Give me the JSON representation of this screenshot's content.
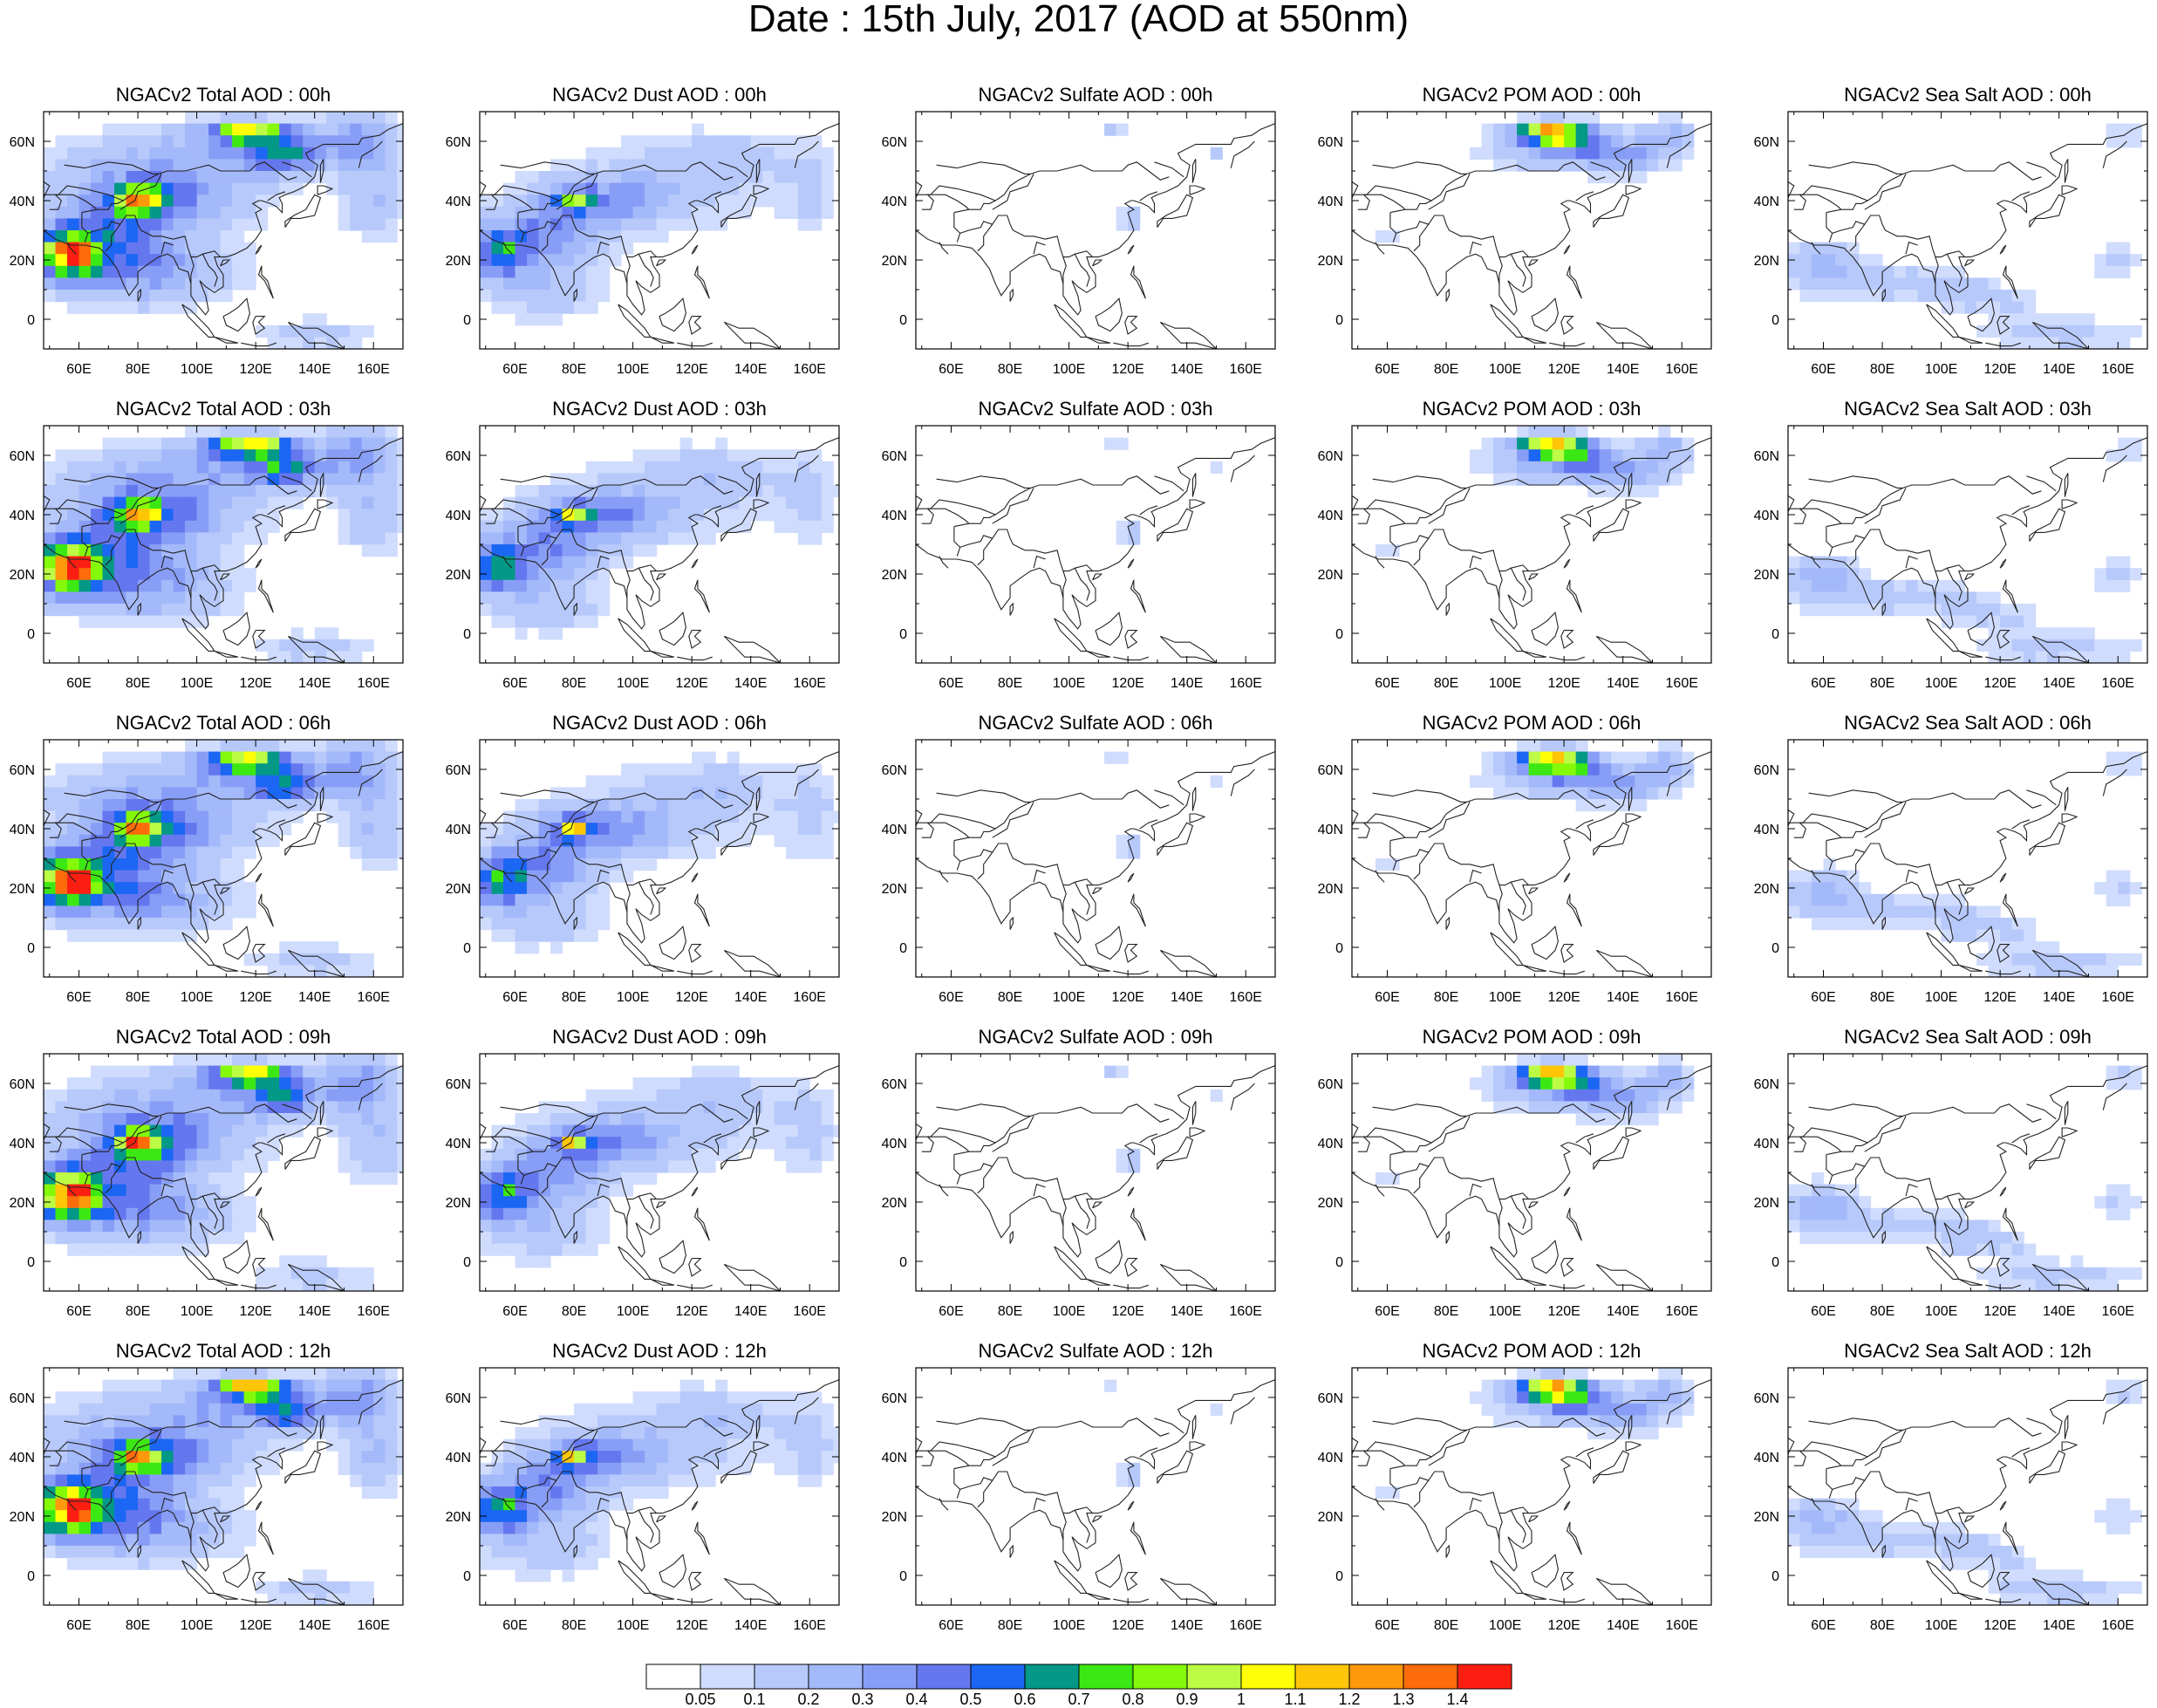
{
  "figure": {
    "title": "Date : 15th July, 2017 (AOD at 550nm)",
    "lon_ticks": [
      "60E",
      "80E",
      "100E",
      "120E",
      "140E",
      "160E"
    ],
    "lat_ticks": [
      "60N",
      "40N",
      "20N",
      "0"
    ],
    "colorbar": {
      "labels": [
        "0.05",
        "0.1",
        "0.2",
        "0.3",
        "0.4",
        "0.5",
        "0.6",
        "0.7",
        "0.8",
        "0.9",
        "1",
        "1.1",
        "1.2",
        "1.3",
        "1.4"
      ],
      "colors": [
        "#ffffff",
        "#d0dcfd",
        "#b7c9fb",
        "#a4b9f9",
        "#889ef6",
        "#6577ef",
        "#1c66f4",
        "#049887",
        "#3ce813",
        "#84fa0a",
        "#bdfc44",
        "#ffff07",
        "#ffc608",
        "#fd990a",
        "#fd6c0a",
        "#fd1e12"
      ]
    }
  },
  "map_data": {
    "region": "South and East Asia",
    "lon_range": [
      48,
      170
    ],
    "lat_range": [
      -10,
      70
    ],
    "panels": [
      [
        {
          "title": "NGACv2 Total AOD : 00h",
          "species": "total",
          "hour": "00h"
        },
        {
          "title": "NGACv2 Dust AOD : 00h",
          "species": "dust",
          "hour": "00h"
        },
        {
          "title": "NGACv2 Sulfate AOD : 00h",
          "species": "sulfate",
          "hour": "00h"
        },
        {
          "title": "NGACv2 POM AOD : 00h",
          "species": "pom",
          "hour": "00h"
        },
        {
          "title": "NGACv2 Sea Salt AOD : 00h",
          "species": "seasalt",
          "hour": "00h"
        }
      ],
      [
        {
          "title": "NGACv2 Total AOD : 03h",
          "species": "total",
          "hour": "03h"
        },
        {
          "title": "NGACv2 Dust AOD : 03h",
          "species": "dust",
          "hour": "03h"
        },
        {
          "title": "NGACv2 Sulfate AOD : 03h",
          "species": "sulfate",
          "hour": "03h"
        },
        {
          "title": "NGACv2 POM AOD : 03h",
          "species": "pom",
          "hour": "03h"
        },
        {
          "title": "NGACv2 Sea Salt AOD : 03h",
          "species": "seasalt",
          "hour": "03h"
        }
      ],
      [
        {
          "title": "NGACv2 Total AOD : 06h",
          "species": "total",
          "hour": "06h"
        },
        {
          "title": "NGACv2 Dust AOD : 06h",
          "species": "dust",
          "hour": "06h"
        },
        {
          "title": "NGACv2 Sulfate AOD : 06h",
          "species": "sulfate",
          "hour": "06h"
        },
        {
          "title": "NGACv2 POM AOD : 06h",
          "species": "pom",
          "hour": "06h"
        },
        {
          "title": "NGACv2 Sea Salt AOD : 06h",
          "species": "seasalt",
          "hour": "06h"
        }
      ],
      [
        {
          "title": "NGACv2 Total AOD : 09h",
          "species": "total",
          "hour": "09h"
        },
        {
          "title": "NGACv2 Dust AOD : 09h",
          "species": "dust",
          "hour": "09h"
        },
        {
          "title": "NGACv2 Sulfate AOD : 09h",
          "species": "sulfate",
          "hour": "09h"
        },
        {
          "title": "NGACv2 POM AOD : 09h",
          "species": "pom",
          "hour": "09h"
        },
        {
          "title": "NGACv2 Sea Salt  AOD : 09h",
          "species": "seasalt",
          "hour": "09h"
        }
      ],
      [
        {
          "title": "NGACv2 Total AOD  : 12h",
          "species": "total",
          "hour": "12h"
        },
        {
          "title": "NGACv2 Dust AOD : 12h",
          "species": "dust",
          "hour": "12h"
        },
        {
          "title": "NGACv2 Sulfate AOD : 12h",
          "species": "sulfate",
          "hour": "12h"
        },
        {
          "title": "NGACv2 POM  AOD : 12h",
          "species": "pom",
          "hour": "12h"
        },
        {
          "title": "NGACv2 Sea Salt  AOD : 12h",
          "species": "seasalt",
          "hour": "12h"
        }
      ]
    ]
  }
}
